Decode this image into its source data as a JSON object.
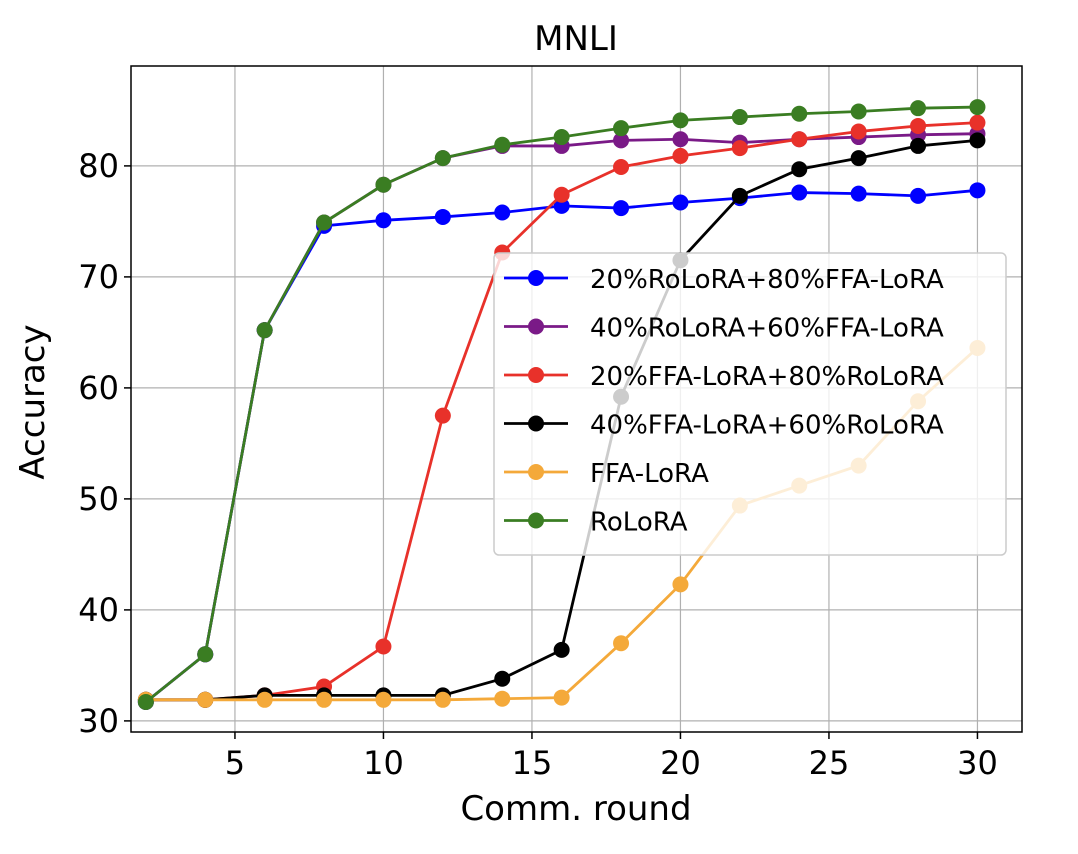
{
  "chart_data": {
    "type": "line",
    "title": "MNLI",
    "xlabel": "Comm. round",
    "ylabel": "Accuracy",
    "xlim": [
      1.5,
      31.5
    ],
    "ylim": [
      29,
      89
    ],
    "xticks": [
      5,
      10,
      15,
      20,
      25,
      30
    ],
    "yticks": [
      30,
      40,
      50,
      60,
      70,
      80
    ],
    "grid": true,
    "legend_position": "center-right",
    "x": [
      2,
      4,
      6,
      8,
      10,
      12,
      14,
      16,
      18,
      20,
      22,
      24,
      26,
      28,
      30
    ],
    "series": [
      {
        "name": "20%RoLoRA+80%FFA-LoRA",
        "color": "#0000ff",
        "values": [
          31.7,
          36.0,
          65.2,
          74.6,
          75.1,
          75.4,
          75.8,
          76.4,
          76.2,
          76.7,
          77.1,
          77.6,
          77.5,
          77.3,
          77.8
        ]
      },
      {
        "name": "40%RoLoRA+60%FFA-LoRA",
        "color": "#7a1a87",
        "values": [
          31.7,
          36.0,
          65.2,
          74.9,
          78.3,
          80.7,
          81.8,
          81.8,
          82.3,
          82.4,
          82.1,
          82.4,
          82.6,
          82.8,
          82.9
        ]
      },
      {
        "name": "20%FFA-LoRA+80%RoLoRA",
        "color": "#e8312a",
        "values": [
          31.9,
          31.9,
          32.3,
          33.1,
          36.7,
          57.5,
          72.2,
          77.4,
          79.9,
          80.9,
          81.6,
          82.4,
          83.1,
          83.6,
          83.9
        ]
      },
      {
        "name": "40%FFA-LoRA+60%RoLoRA",
        "color": "#000000",
        "values": [
          31.9,
          31.9,
          32.3,
          32.3,
          32.3,
          32.3,
          33.8,
          36.4,
          59.2,
          71.5,
          77.3,
          79.7,
          80.7,
          81.8,
          82.3
        ]
      },
      {
        "name": "FFA-LoRA",
        "color": "#f4a93a",
        "values": [
          31.9,
          31.9,
          31.9,
          31.9,
          31.9,
          31.9,
          32.0,
          32.1,
          37.0,
          42.3,
          49.4,
          51.2,
          53.0,
          58.8,
          63.6
        ]
      },
      {
        "name": "RoLoRA",
        "color": "#3a7d22",
        "values": [
          31.7,
          36.0,
          65.2,
          74.9,
          78.3,
          80.7,
          81.9,
          82.6,
          83.4,
          84.1,
          84.4,
          84.7,
          84.9,
          85.2,
          85.3
        ]
      }
    ]
  }
}
